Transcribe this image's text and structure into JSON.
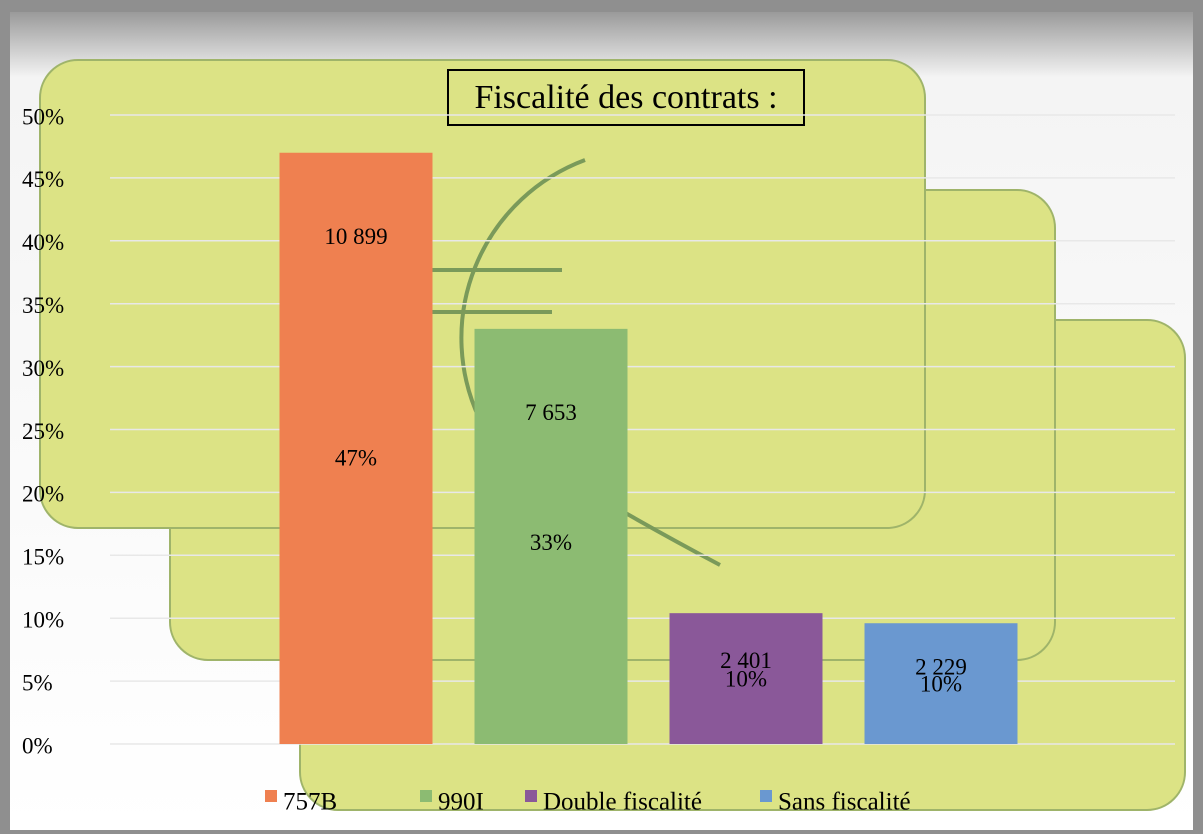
{
  "chart_data": {
    "type": "bar",
    "title": "Fiscalité des contrats :",
    "categories": [
      "757B",
      "990I",
      "Double fiscalité",
      "Sans fiscalité"
    ],
    "values": [
      47,
      33,
      10.4,
      9.6
    ],
    "value_labels": [
      "47%",
      "33%",
      "10%",
      "10%"
    ],
    "count_labels": [
      "10 899",
      "7 653",
      "2 401",
      "2 229"
    ],
    "colors": [
      "#ef8050",
      "#8cbb72",
      "#8a5899",
      "#6a98d0"
    ],
    "ylim": [
      0,
      50
    ],
    "yticks": [
      {
        "value": 0,
        "label": "0%"
      },
      {
        "value": 5,
        "label": "5%"
      },
      {
        "value": 10,
        "label": "10%"
      },
      {
        "value": 15,
        "label": "15%"
      },
      {
        "value": 20,
        "label": "20%"
      },
      {
        "value": 25,
        "label": "25%"
      },
      {
        "value": 30,
        "label": "30%"
      },
      {
        "value": 35,
        "label": "35%"
      },
      {
        "value": 40,
        "label": "40%"
      },
      {
        "value": 45,
        "label": "45%"
      },
      {
        "value": 50,
        "label": "50%"
      }
    ],
    "grid": true,
    "legend": "bottom"
  }
}
